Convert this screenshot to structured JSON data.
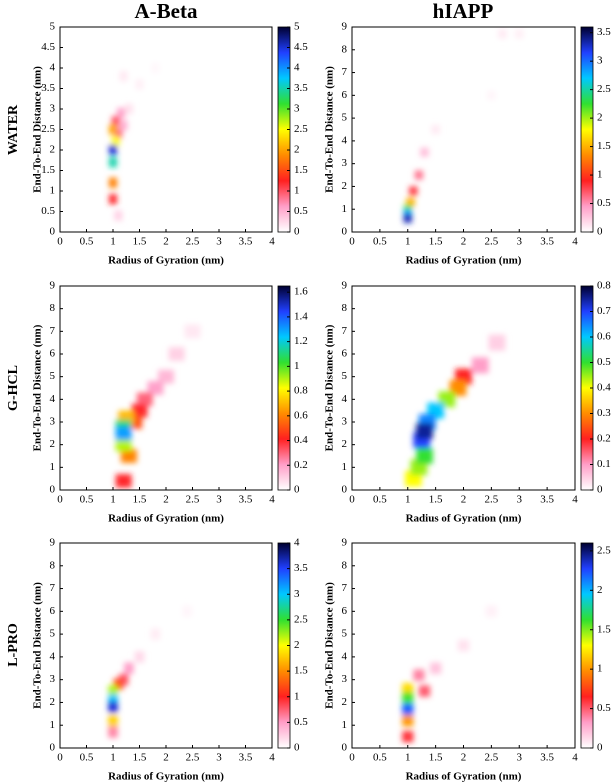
{
  "columns": [
    "A-Beta",
    "hIAPP"
  ],
  "rows": [
    "WATER",
    "G-HCL",
    "L-PRO"
  ],
  "chart_data": [
    {
      "type": "heatmap",
      "xlabel": "Radius of Gyration (nm)",
      "ylabel": "End-To-End Distance (nm)",
      "xlim": [
        0,
        4
      ],
      "xticks": [
        0,
        0.5,
        1,
        1.5,
        2,
        2.5,
        3,
        3.5,
        4
      ],
      "ylim": [
        0,
        5
      ],
      "yticks": [
        0,
        0.5,
        1,
        1.5,
        2,
        2.5,
        3,
        3.5,
        4,
        4.5,
        5
      ],
      "clim": [
        0,
        5
      ],
      "cticks": [
        0,
        0.5,
        1,
        1.5,
        2,
        2.5,
        3,
        3.5,
        4,
        4.5,
        5
      ],
      "colormap": [
        "#ffffff",
        "#ff9ec8",
        "#ff2020",
        "#ff8c00",
        "#ffff00",
        "#30e030",
        "#00c8ff",
        "#2040ff",
        "#000030"
      ],
      "bin_size": [
        0.15,
        0.25
      ],
      "x": [
        1.8,
        1.5,
        1.2,
        1.3,
        1.1,
        1.2,
        1.15,
        1.1,
        1.05,
        1.0,
        1.0,
        1.0,
        1.05,
        1.0,
        1.0
      ],
      "y": [
        4.0,
        3.6,
        3.8,
        3.0,
        0.4,
        2.6,
        2.9,
        2.4,
        2.7,
        0.8,
        1.2,
        2.5,
        2.2,
        1.7,
        2.0
      ],
      "values": [
        0.05,
        0.1,
        0.15,
        0.2,
        0.3,
        0.5,
        0.6,
        0.9,
        1.0,
        1.2,
        1.8,
        2.0,
        2.5,
        3.5,
        4.5
      ]
    },
    {
      "type": "heatmap",
      "xlabel": "Radius of Gyration (nm)",
      "ylabel": "End-To-End Distance (nm)",
      "xlim": [
        0,
        4
      ],
      "xticks": [
        0,
        0.5,
        1,
        1.5,
        2,
        2.5,
        3,
        3.5,
        4
      ],
      "ylim": [
        0,
        9
      ],
      "yticks": [
        0,
        1,
        2,
        3,
        4,
        5,
        6,
        7,
        8,
        9
      ],
      "clim": [
        0,
        3.6
      ],
      "cticks": [
        0,
        0.5,
        1,
        1.5,
        2,
        2.5,
        3,
        3.5
      ],
      "colormap": [
        "#ffffff",
        "#ff9ec8",
        "#ff2020",
        "#ff8c00",
        "#ffff00",
        "#30e030",
        "#00c8ff",
        "#2040ff",
        "#000030"
      ],
      "bin_size": [
        0.15,
        0.4
      ],
      "x": [
        2.5,
        3.0,
        2.7,
        1.5,
        1.3,
        1.2,
        1.1,
        1.05,
        1.0,
        1.0,
        1.0
      ],
      "y": [
        6.0,
        8.7,
        8.7,
        4.5,
        3.5,
        2.5,
        1.8,
        1.3,
        1.0,
        0.8,
        0.6
      ],
      "values": [
        0.05,
        0.08,
        0.1,
        0.1,
        0.3,
        0.6,
        0.8,
        1.5,
        2.2,
        2.8,
        3.3
      ]
    },
    {
      "type": "heatmap",
      "xlabel": "Radius of Gyration (nm)",
      "ylabel": "End-To-End Distance (nm)",
      "xlim": [
        0,
        4
      ],
      "xticks": [
        0,
        0.5,
        1,
        1.5,
        2,
        2.5,
        3,
        3.5,
        4
      ],
      "ylim": [
        0,
        9
      ],
      "yticks": [
        0,
        1,
        2,
        3,
        4,
        5,
        6,
        7,
        8,
        9
      ],
      "clim": [
        0,
        1.65
      ],
      "cticks": [
        0,
        0.2,
        0.4,
        0.6,
        0.8,
        1,
        1.2,
        1.4,
        1.6
      ],
      "colormap": [
        "#ffffff",
        "#ff9ec8",
        "#ff2020",
        "#ff8c00",
        "#ffff00",
        "#30e030",
        "#00c8ff",
        "#2040ff",
        "#000030"
      ],
      "bin_size": [
        0.3,
        0.6
      ],
      "x": [
        2.5,
        2.2,
        2.0,
        1.8,
        1.6,
        1.2,
        1.5,
        1.4,
        1.3,
        1.25,
        1.2,
        1.2,
        1.2
      ],
      "y": [
        7.0,
        6.0,
        5.0,
        4.5,
        4.0,
        0.4,
        3.5,
        3.0,
        1.5,
        3.2,
        2.0,
        2.8,
        2.5
      ],
      "values": [
        0.05,
        0.1,
        0.15,
        0.2,
        0.3,
        0.4,
        0.4,
        0.5,
        0.6,
        0.7,
        0.9,
        1.1,
        1.3
      ]
    },
    {
      "type": "heatmap",
      "xlabel": "Radius of Gyration (nm)",
      "ylabel": "End-To-End Distance (nm)",
      "xlim": [
        0,
        4
      ],
      "xticks": [
        0,
        0.5,
        1,
        1.5,
        2,
        2.5,
        3,
        3.5,
        4
      ],
      "ylim": [
        0,
        9
      ],
      "yticks": [
        0,
        1,
        2,
        3,
        4,
        5,
        6,
        7,
        8,
        9
      ],
      "clim": [
        0,
        0.8
      ],
      "cticks": [
        0,
        0.1,
        0.2,
        0.3,
        0.4,
        0.5,
        0.6,
        0.7,
        0.8
      ],
      "colormap": [
        "#ffffff",
        "#ff9ec8",
        "#ff2020",
        "#ff8c00",
        "#ffff00",
        "#30e030",
        "#00c8ff",
        "#2040ff",
        "#000030"
      ],
      "bin_size": [
        0.3,
        0.7
      ],
      "x": [
        2.6,
        2.3,
        2.0,
        1.9,
        1.1,
        1.2,
        1.7,
        1.3,
        1.5,
        1.35,
        1.25,
        1.3
      ],
      "y": [
        6.5,
        5.5,
        5.0,
        4.5,
        0.5,
        1.0,
        4.0,
        1.5,
        3.5,
        3.0,
        2.2,
        2.6
      ],
      "values": [
        0.05,
        0.1,
        0.2,
        0.3,
        0.4,
        0.45,
        0.45,
        0.5,
        0.6,
        0.65,
        0.7,
        0.75
      ]
    },
    {
      "type": "heatmap",
      "xlabel": "Radius of Gyration (nm)",
      "ylabel": "End-To-End Distance (nm)",
      "xlim": [
        0,
        4
      ],
      "xticks": [
        0,
        0.5,
        1,
        1.5,
        2,
        2.5,
        3,
        3.5,
        4
      ],
      "ylim": [
        0,
        9
      ],
      "yticks": [
        0,
        1,
        2,
        3,
        4,
        5,
        6,
        7,
        8,
        9
      ],
      "clim": [
        0,
        4
      ],
      "cticks": [
        0,
        0.5,
        1,
        1.5,
        2,
        2.5,
        3,
        3.5,
        4
      ],
      "colormap": [
        "#ffffff",
        "#ff9ec8",
        "#ff2020",
        "#ff8c00",
        "#ffff00",
        "#30e030",
        "#00c8ff",
        "#2040ff",
        "#000030"
      ],
      "bin_size": [
        0.18,
        0.5
      ],
      "x": [
        2.4,
        1.8,
        1.5,
        1.3,
        1.0,
        1.2,
        1.1,
        1.0,
        1.0,
        1.0,
        1.0
      ],
      "y": [
        6.0,
        5.0,
        4.0,
        3.5,
        0.7,
        3.0,
        2.8,
        1.2,
        2.5,
        2.1,
        1.8
      ],
      "values": [
        0.05,
        0.1,
        0.2,
        0.5,
        0.6,
        0.8,
        1.2,
        1.8,
        2.2,
        3.0,
        3.6
      ]
    },
    {
      "type": "heatmap",
      "xlabel": "Radius of Gyration (nm)",
      "ylabel": "End-To-End Distance (nm)",
      "xlim": [
        0,
        4
      ],
      "xticks": [
        0,
        0.5,
        1,
        1.5,
        2,
        2.5,
        3,
        3.5,
        4
      ],
      "ylim": [
        0,
        9
      ],
      "yticks": [
        0,
        1,
        2,
        3,
        4,
        5,
        6,
        7,
        8,
        9
      ],
      "clim": [
        0,
        2.6
      ],
      "cticks": [
        0,
        0.5,
        1,
        1.5,
        2,
        2.5
      ],
      "colormap": [
        "#ffffff",
        "#ff9ec8",
        "#ff2020",
        "#ff8c00",
        "#ffff00",
        "#30e030",
        "#00c8ff",
        "#2040ff",
        "#000030"
      ],
      "bin_size": [
        0.2,
        0.5
      ],
      "x": [
        2.5,
        2.0,
        1.5,
        1.2,
        1.3,
        1.0,
        1.0,
        1.0,
        1.0,
        1.0
      ],
      "y": [
        6.0,
        4.5,
        3.5,
        3.2,
        2.5,
        0.5,
        1.2,
        2.6,
        2.2,
        1.7
      ],
      "values": [
        0.05,
        0.1,
        0.2,
        0.4,
        0.5,
        0.6,
        1.0,
        1.2,
        1.6,
        2.2
      ]
    }
  ]
}
